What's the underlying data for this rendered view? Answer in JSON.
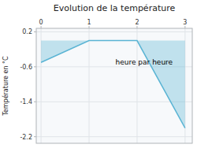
{
  "chart_data": {
    "type": "line",
    "title": "Evolution de la température",
    "ylabel": "Température en °C",
    "x": [
      0,
      1,
      2,
      3
    ],
    "values": [
      -0.5,
      0.0,
      0.0,
      -2.0
    ],
    "color": "#5ab4d4",
    "xlim": [
      -0.1,
      3.15
    ],
    "ylim": [
      -2.35,
      0.28
    ],
    "xticks": [
      0,
      1,
      2,
      3
    ],
    "yticks": [
      0.2,
      -0.6,
      -1.4,
      -2.2
    ],
    "grid": true,
    "annotations": [
      {
        "text": "heure par heure",
        "x": 1.55,
        "y": -0.38
      }
    ]
  }
}
